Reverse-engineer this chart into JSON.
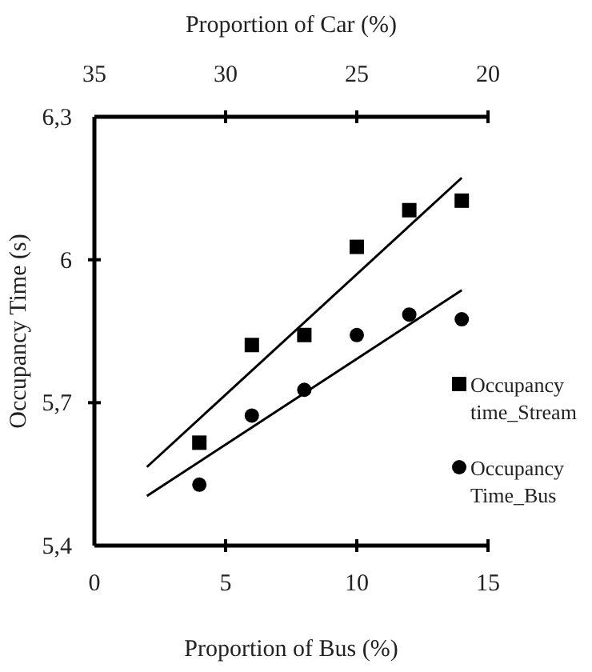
{
  "chart_data": {
    "type": "scatter",
    "xlabel": "Proportion of Bus (%)",
    "x2label": "Proportion of Car (%)",
    "ylabel": "Occupancy Time (s)",
    "xlim": [
      0,
      15
    ],
    "xticks": [
      0,
      5,
      10,
      15
    ],
    "x2lim": [
      35,
      20
    ],
    "x2ticks": [
      35,
      30,
      25,
      20
    ],
    "ylim": [
      5.4,
      6.3
    ],
    "yticks": [
      {
        "value": 5.4,
        "label": "5,4"
      },
      {
        "value": 5.7,
        "label": "5,7"
      },
      6,
      {
        "value": 6.3,
        "label": "6,3"
      }
    ],
    "grid": false,
    "legend": "right",
    "series": [
      {
        "name": "Occupancy time_Stream",
        "marker": "square",
        "color": "#000000",
        "x": [
          4,
          6,
          8,
          10,
          12,
          14
        ],
        "values": [
          5.616,
          5.821,
          5.842,
          6.027,
          6.104,
          6.124
        ]
      },
      {
        "name": "Occupancy Time_Bus",
        "marker": "circle",
        "color": "#000000",
        "x": [
          4,
          6,
          8,
          10,
          12,
          14
        ],
        "values": [
          5.528,
          5.673,
          5.727,
          5.842,
          5.885,
          5.875
        ]
      },
      {
        "type": "line",
        "marker": "none",
        "color": "#000000",
        "x": [
          2,
          14
        ],
        "values": [
          5.565,
          6.172
        ]
      },
      {
        "type": "line",
        "marker": "none",
        "color": "#000000",
        "x": [
          2,
          14
        ],
        "values": [
          5.504,
          5.936
        ]
      }
    ]
  }
}
